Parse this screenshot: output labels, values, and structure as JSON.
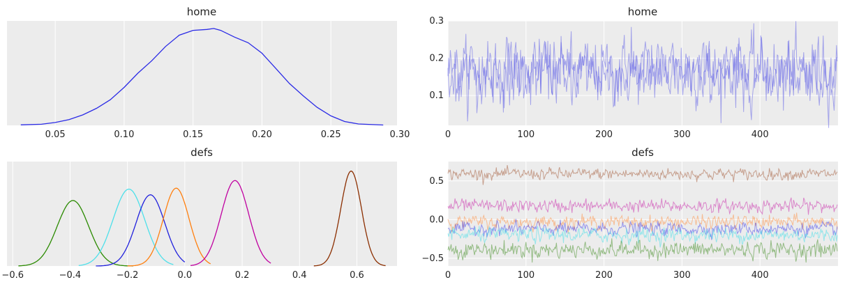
{
  "chart_data": [
    {
      "type": "line",
      "title": "home",
      "xlabel": "",
      "ylabel": "",
      "xlim": [
        0.015,
        0.298
      ],
      "ylim": [
        0,
        1.1
      ],
      "x_ticks": [
        "0.05",
        "0.10",
        "0.15",
        "0.20",
        "0.25",
        "0.30"
      ],
      "grid": true,
      "series": [
        {
          "color": "#2a2ae6",
          "x": [
            0.025,
            0.04,
            0.05,
            0.06,
            0.07,
            0.08,
            0.09,
            0.1,
            0.11,
            0.12,
            0.13,
            0.14,
            0.15,
            0.16,
            0.165,
            0.17,
            0.18,
            0.19,
            0.2,
            0.21,
            0.22,
            0.23,
            0.24,
            0.25,
            0.26,
            0.27,
            0.288
          ],
          "y": [
            0.005,
            0.012,
            0.03,
            0.06,
            0.11,
            0.18,
            0.27,
            0.4,
            0.55,
            0.68,
            0.83,
            0.95,
            1.0,
            1.01,
            1.02,
            1.0,
            0.93,
            0.87,
            0.76,
            0.6,
            0.44,
            0.31,
            0.19,
            0.1,
            0.04,
            0.015,
            0.004
          ]
        }
      ]
    },
    {
      "type": "line",
      "title": "home",
      "xlim": [
        0,
        500
      ],
      "ylim": [
        0.02,
        0.3
      ],
      "x_ticks": [
        "0",
        "100",
        "200",
        "300",
        "400"
      ],
      "y_ticks": [
        "0.1",
        "0.2",
        "0.3"
      ],
      "grid": true,
      "series": [
        {
          "color": "#5a5ae8",
          "center": 0.165,
          "spread": 0.042
        },
        {
          "color": "#5a5ae8",
          "center": 0.162,
          "spread": 0.038
        }
      ]
    },
    {
      "type": "line",
      "title": "defs",
      "xlim": [
        -0.62,
        0.74
      ],
      "ylim": [
        0,
        1.1
      ],
      "x_ticks": [
        "−0.6",
        "−0.4",
        "−0.2",
        "0.0",
        "0.2",
        "0.4",
        "0.6"
      ],
      "grid": true,
      "series": [
        {
          "color": "#2a8a00",
          "mean": -0.39,
          "sd": 0.055,
          "height": 0.69,
          "range": [
            -0.58,
            -0.18
          ]
        },
        {
          "color": "#4de0ea",
          "mean": -0.195,
          "sd": 0.055,
          "height": 0.81,
          "range": [
            -0.37,
            -0.04
          ]
        },
        {
          "color": "#2020dd",
          "mean": -0.12,
          "sd": 0.05,
          "height": 0.75,
          "range": [
            -0.31,
            0.0
          ]
        },
        {
          "color": "#ff7f0e",
          "mean": -0.03,
          "sd": 0.045,
          "height": 0.82,
          "range": [
            -0.2,
            0.09
          ]
        },
        {
          "color": "#c000a0",
          "mean": 0.175,
          "sd": 0.048,
          "height": 0.9,
          "range": [
            0.02,
            0.3
          ]
        },
        {
          "color": "#8b2e00",
          "mean": 0.58,
          "sd": 0.036,
          "height": 1.0,
          "range": [
            0.45,
            0.7
          ]
        }
      ]
    },
    {
      "type": "line",
      "title": "defs",
      "xlim": [
        0,
        500
      ],
      "ylim": [
        -0.6,
        0.75
      ],
      "x_ticks": [
        "0",
        "100",
        "200",
        "300",
        "400"
      ],
      "y_ticks": [
        "0.5",
        "0.0",
        "−0.5"
      ],
      "grid": true,
      "series": [
        {
          "color": "#a0522d",
          "center": 0.59,
          "spread": 0.035
        },
        {
          "color": "#c71fa8",
          "center": 0.175,
          "spread": 0.04
        },
        {
          "color": "#ff8c3a",
          "center": -0.03,
          "spread": 0.04
        },
        {
          "color": "#3a3aee",
          "center": -0.12,
          "spread": 0.04
        },
        {
          "color": "#3cdde8",
          "center": -0.2,
          "spread": 0.045
        },
        {
          "color": "#3a8a1a",
          "center": -0.39,
          "spread": 0.05
        }
      ]
    }
  ]
}
